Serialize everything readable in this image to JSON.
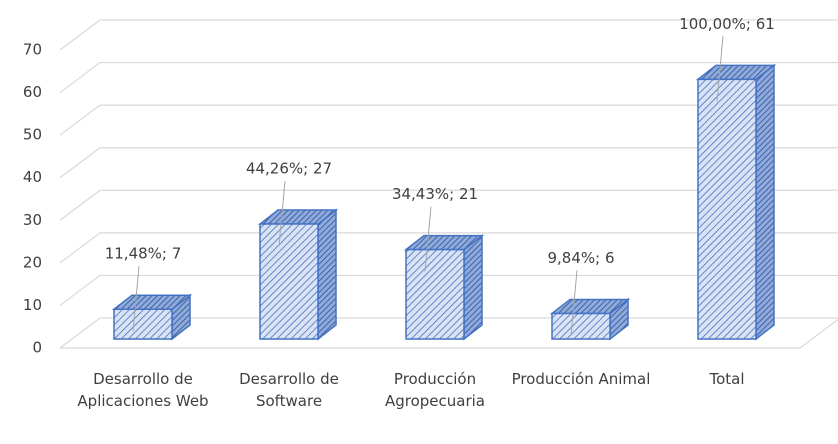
{
  "chart_data": {
    "type": "bar3d",
    "categories": [
      "Desarrollo de Aplicaciones Web",
      "Desarrollo de Software",
      "Producción Agropecuaria",
      "Producción Animal",
      "Total"
    ],
    "values": [
      7,
      27,
      21,
      6,
      61
    ],
    "value_labels": [
      "11,48%; 7",
      "44,26%; 27",
      "34,43%; 21",
      "9,84%; 6",
      "100,00%; 61"
    ],
    "color": "#4472c4",
    "ylim": [
      0,
      70
    ],
    "yticks": [
      0,
      10,
      20,
      30,
      40,
      50,
      60,
      70
    ],
    "grid": true
  }
}
